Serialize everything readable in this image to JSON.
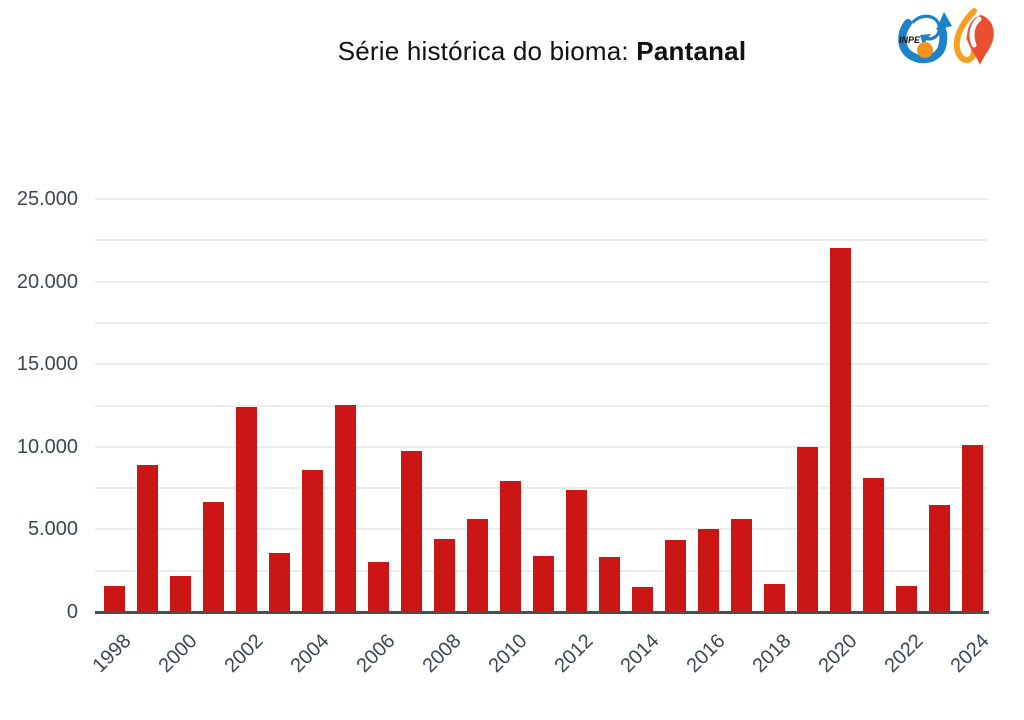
{
  "page": {
    "background": "#FFFFFF"
  },
  "header": {
    "title_prefix": "Série histórica do bioma: ",
    "title_biome": "Pantanal",
    "logo": {
      "inpe_text": "INPE",
      "colors": {
        "swoosh_blue": "#1E82C8",
        "dot_orange": "#F6921E",
        "flame_orange": "#F6A01E",
        "flame_red": "#E84F33"
      }
    }
  },
  "chart_data": {
    "type": "bar",
    "title": "Série histórica do bioma: Pantanal",
    "xlabel": "",
    "ylabel": "",
    "grid": "on",
    "legend_position": "none",
    "ylim": [
      0,
      25000
    ],
    "grid_step": 2500,
    "categories": [
      "1998",
      "1999",
      "2000",
      "2001",
      "2002",
      "2003",
      "2004",
      "2005",
      "2006",
      "2007",
      "2008",
      "2009",
      "2010",
      "2011",
      "2012",
      "2013",
      "2014",
      "2015",
      "2016",
      "2017",
      "2018",
      "2019",
      "2020",
      "2021",
      "2022",
      "2023",
      "2024"
    ],
    "values": [
      1550,
      8900,
      2200,
      6650,
      12400,
      3600,
      8600,
      12550,
      3050,
      9750,
      4400,
      5650,
      7900,
      3400,
      7400,
      3350,
      1500,
      4350,
      5050,
      5650,
      1700,
      10000,
      22050,
      8100,
      1600,
      6500,
      10100
    ],
    "yticks": [
      {
        "value": 0,
        "label": "0"
      },
      {
        "value": 5000,
        "label": "5.000"
      },
      {
        "value": 10000,
        "label": "10.000"
      },
      {
        "value": 15000,
        "label": "15.000"
      },
      {
        "value": 20000,
        "label": "20.000"
      },
      {
        "value": 25000,
        "label": "25.000"
      }
    ],
    "xticks_shown": [
      "1998",
      "2000",
      "2002",
      "2004",
      "2006",
      "2008",
      "2010",
      "2012",
      "2014",
      "2016",
      "2018",
      "2020",
      "2022",
      "2024"
    ],
    "colors": {
      "bar": "#CC1616",
      "grid": "#ECECEC",
      "axis": "#4D4D4D",
      "tick_text": "#3D4752",
      "title_text": "#111111"
    }
  }
}
